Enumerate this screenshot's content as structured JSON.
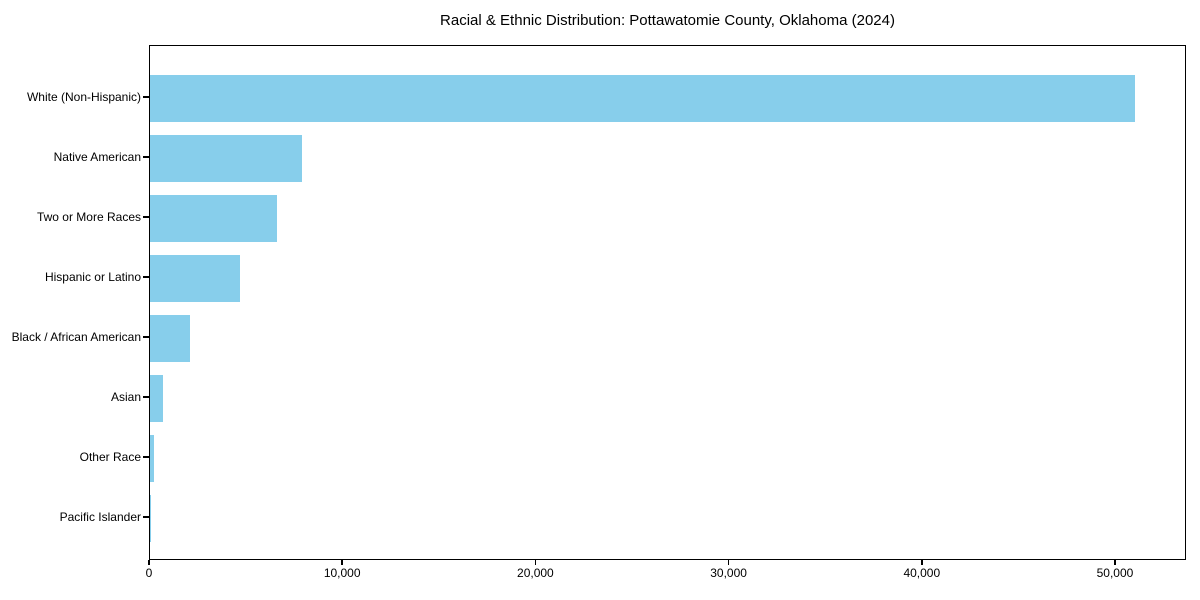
{
  "figure": {
    "background_color": "#ffffff",
    "axis_color": "#000000"
  },
  "chart_data": {
    "type": "bar",
    "orientation": "horizontal",
    "title": "Racial & Ethnic Distribution: Pottawatomie County, Oklahoma (2024)",
    "categories": [
      "White (Non-Hispanic)",
      "Native American",
      "Two or More Races",
      "Hispanic or Latino",
      "Black / African American",
      "Asian",
      "Other Race",
      "Pacific Islander"
    ],
    "values": [
      51100,
      7900,
      6600,
      4650,
      2070,
      660,
      220,
      60
    ],
    "bar_color": "#87CEEB",
    "xlabel": "",
    "ylabel": "",
    "xlim": [
      0,
      53675
    ],
    "x_ticks": [
      0,
      10000,
      20000,
      30000,
      40000,
      50000
    ],
    "x_tick_labels": [
      "0",
      "10,000",
      "20,000",
      "30,000",
      "40,000",
      "50,000"
    ],
    "grid": false,
    "legend": null
  }
}
